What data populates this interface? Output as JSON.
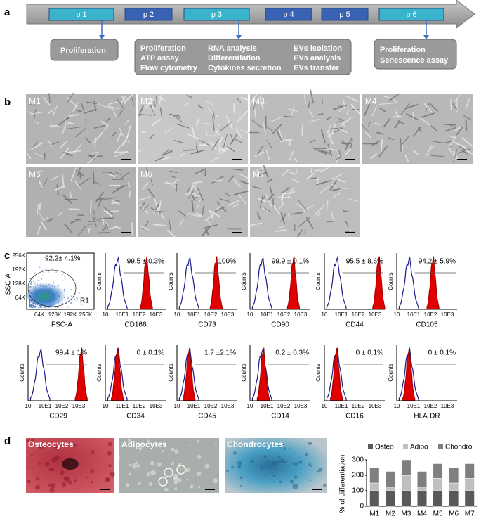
{
  "panel_a": {
    "label": "a",
    "steps": [
      "p 1",
      "p 2",
      "p 3",
      "p 4",
      "p 5",
      "p 6"
    ],
    "box1": [
      "Proliferation"
    ],
    "box2": [
      [
        "Proliferation",
        "ATP assay",
        "Flow cytometry"
      ],
      [
        "RNA analysis",
        "Differentiation",
        "Cytokines secretion"
      ],
      [
        "EVs isolation",
        "EVs analysis",
        "EVs transfer"
      ]
    ],
    "box3": [
      "Proliferation",
      "Senescence assay"
    ]
  },
  "panel_b": {
    "label": "b",
    "images": [
      "M1",
      "M2",
      "M3",
      "M4",
      "M5",
      "M6",
      "M7"
    ]
  },
  "panel_c": {
    "label": "c",
    "scatter": {
      "percent": "92.2± 4.1%",
      "gate": "R1",
      "ylabel": "SSC-A",
      "xlabel": "FSC-A",
      "yticks": [
        "256K",
        "192K",
        "128K",
        "64K"
      ],
      "xticks": [
        "64K",
        "128K",
        "192K",
        "256K"
      ]
    },
    "ylabel": "Counts",
    "xticks": [
      "10",
      "10E1",
      "10E2",
      "10E3"
    ],
    "histograms": [
      {
        "marker": "CD166",
        "percent": "99.5 ± 0.3%"
      },
      {
        "marker": "CD73",
        "percent": "100%"
      },
      {
        "marker": "CD90",
        "percent": "99.9 ± 0.1%"
      },
      {
        "marker": "CD44",
        "percent": "95.5 ± 8.6%"
      },
      {
        "marker": "CD105",
        "percent": "94.2 ± 5.9%"
      },
      {
        "marker": "CD29",
        "percent": "99.4 ± 1%"
      },
      {
        "marker": "CD34",
        "percent": "0 ± 0.1%"
      },
      {
        "marker": "CD45",
        "percent": "1.7 ±2.1%"
      },
      {
        "marker": "CD14",
        "percent": "0.2 ± 0.3%"
      },
      {
        "marker": "CD16",
        "percent": "0 ± 0.1%"
      },
      {
        "marker": "HLA-DR",
        "percent": "0 ± 0.1%"
      }
    ]
  },
  "panel_d": {
    "label": "d",
    "images": [
      "Osteocytes",
      "Adipocytes",
      "Chondrocytes"
    ],
    "chart": {
      "type": "bar",
      "stacked": true,
      "ylabel": "% of differentiation",
      "categories": [
        "M1",
        "M2",
        "M3",
        "M4",
        "M5",
        "M6",
        "M7"
      ],
      "series": [
        {
          "name": "Osteo",
          "color": "#595959",
          "values": [
            100,
            100,
            100,
            100,
            100,
            100,
            100
          ]
        },
        {
          "name": "Adipo",
          "color": "#bfbfbf",
          "values": [
            50,
            20,
            100,
            20,
            80,
            50,
            80
          ]
        },
        {
          "name": "Chondro",
          "color": "#7f7f7f",
          "values": [
            100,
            105,
            100,
            105,
            95,
            100,
            95
          ]
        }
      ],
      "ylim": [
        0,
        300
      ],
      "yticks": [
        0,
        100,
        200,
        300
      ]
    }
  }
}
